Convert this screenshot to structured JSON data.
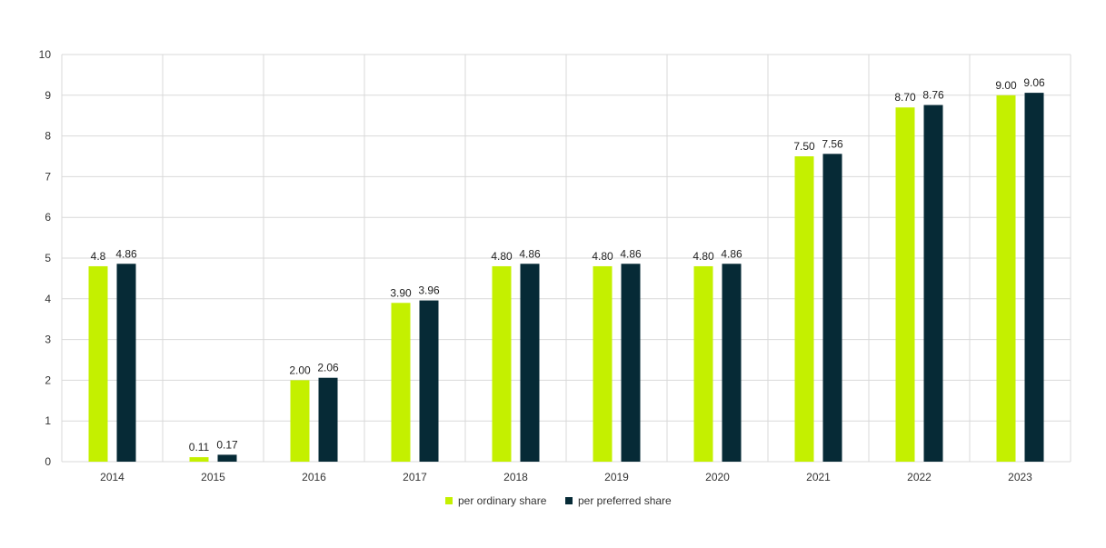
{
  "chart_data": {
    "type": "bar",
    "title": "",
    "xlabel": "",
    "ylabel": "",
    "categories": [
      "2014",
      "2015",
      "2016",
      "2017",
      "2018",
      "2019",
      "2020",
      "2021",
      "2022",
      "2023"
    ],
    "series": [
      {
        "name": "per ordinary share",
        "color": "#c4f000",
        "values": [
          4.8,
          0.11,
          2.0,
          3.9,
          4.8,
          4.8,
          4.8,
          7.5,
          8.7,
          9.0
        ],
        "labels": [
          "4.8",
          "0.11",
          "2.00",
          "3.90",
          "4.80",
          "4.80",
          "4.80",
          "7.50",
          "8.70",
          "9.00"
        ]
      },
      {
        "name": "per preferred share",
        "color": "#062a36",
        "values": [
          4.86,
          0.17,
          2.06,
          3.96,
          4.86,
          4.86,
          4.86,
          7.56,
          8.76,
          9.06
        ],
        "labels": [
          "4.86",
          "0.17",
          "2.06",
          "3.96",
          "4.86",
          "4.86",
          "4.86",
          "7.56",
          "8.76",
          "9.06"
        ]
      }
    ],
    "ylim": [
      0,
      10
    ],
    "yticks": [
      "0",
      "1",
      "2",
      "3",
      "4",
      "5",
      "6",
      "7",
      "8",
      "9",
      "10"
    ],
    "grid": true,
    "legend_position": "bottom-center"
  }
}
